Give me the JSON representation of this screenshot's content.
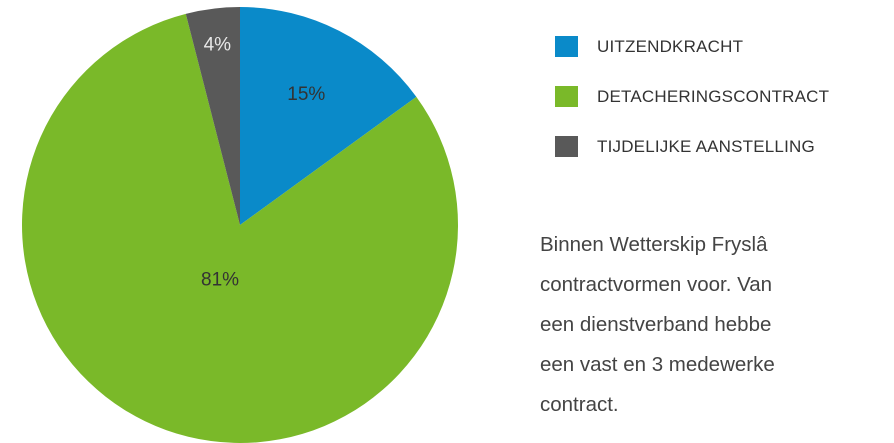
{
  "chart_data": {
    "type": "pie",
    "categories": [
      "UITZENDKRACHT",
      "DETACHERINGSCONTRACT",
      "TIJDELIJKE AANSTELLING"
    ],
    "values": [
      15,
      81,
      4
    ],
    "value_labels": [
      "15%",
      "81%",
      "4%"
    ],
    "colors": [
      "#0a8ac9",
      "#7ab929",
      "#595959"
    ],
    "legend": "right"
  },
  "text": {
    "lines": [
      "Binnen Wetterskip Fryslâ",
      "contractvormen voor. Van",
      "een dienstverband hebbe",
      "een vast en 3 medewerke",
      "contract."
    ]
  }
}
